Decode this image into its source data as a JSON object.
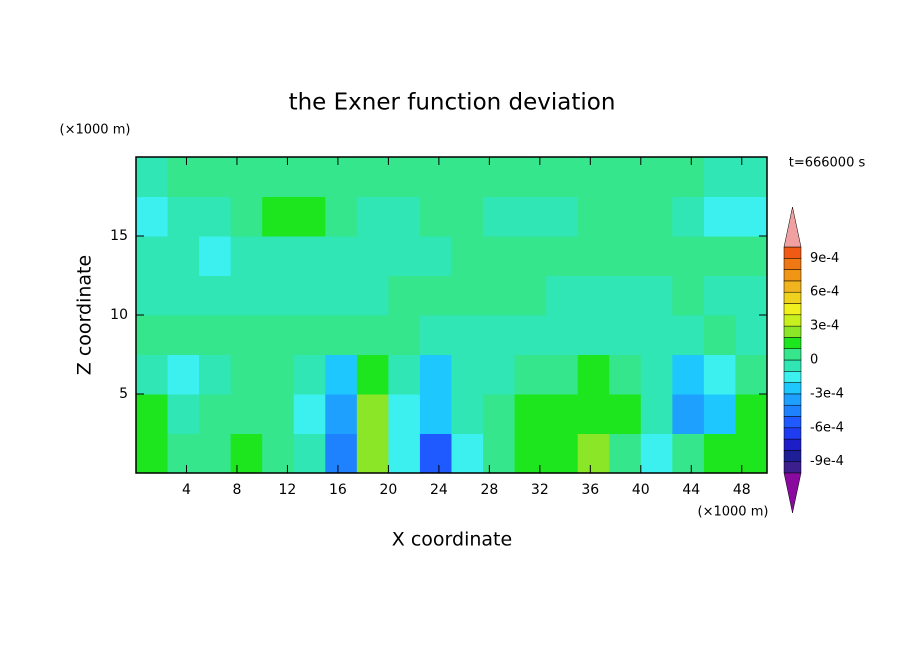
{
  "chart_data": {
    "type": "contour",
    "title": "the Exner function deviation",
    "xlabel": "X coordinate",
    "ylabel": "Z coordinate",
    "x_unit": "(×1000 m)",
    "y_unit": "(×1000 m)",
    "annotation": "t=666000 s",
    "xlim": [
      0,
      50
    ],
    "ylim": [
      0,
      20
    ],
    "xticks": [
      4,
      8,
      12,
      16,
      20,
      24,
      28,
      32,
      36,
      40,
      44,
      48
    ],
    "yticks": [
      5,
      10,
      15
    ],
    "x": [
      1.25,
      3.75,
      6.25,
      8.75,
      11.25,
      13.75,
      16.25,
      18.75,
      21.25,
      23.75,
      26.25,
      28.75,
      31.25,
      33.75,
      36.25,
      38.75,
      41.25,
      43.75,
      46.25,
      48.75
    ],
    "y": [
      1.25,
      3.75,
      6.25,
      8.75,
      11.25,
      13.75,
      16.25,
      18.75
    ],
    "z": [
      [
        0.00015,
        5e-05,
        5e-05,
        0.00015,
        5e-05,
        -5e-05,
        -0.00045,
        0.00025,
        -0.00015,
        -0.00055,
        -0.00015,
        5e-05,
        0.00015,
        0.00015,
        0.00025,
        5e-05,
        -0.00015,
        5e-05,
        0.00015,
        0.00015
      ],
      [
        0.00015,
        -5e-05,
        5e-05,
        5e-05,
        5e-05,
        -0.00015,
        -0.00035,
        0.00025,
        -0.00015,
        -0.00025,
        -5e-05,
        5e-05,
        0.00015,
        0.00015,
        0.00015,
        0.00015,
        -5e-05,
        -0.00035,
        -0.00025,
        0.00015
      ],
      [
        -5e-05,
        -0.00015,
        -5e-05,
        5e-05,
        5e-05,
        -5e-05,
        -0.00025,
        0.00015,
        -5e-05,
        -0.00025,
        -5e-05,
        -5e-05,
        5e-05,
        5e-05,
        0.00015,
        5e-05,
        -5e-05,
        -0.00025,
        -0.00015,
        5e-05
      ],
      [
        5e-05,
        5e-05,
        5e-05,
        5e-05,
        5e-05,
        5e-05,
        5e-05,
        5e-05,
        5e-05,
        -5e-05,
        -5e-05,
        -5e-05,
        -5e-05,
        -5e-05,
        -5e-05,
        -5e-05,
        -5e-05,
        -5e-05,
        5e-05,
        -5e-05
      ],
      [
        -5e-05,
        -5e-05,
        -5e-05,
        -5e-05,
        -5e-05,
        -5e-05,
        -5e-05,
        -5e-05,
        5e-05,
        5e-05,
        5e-05,
        5e-05,
        5e-05,
        -5e-05,
        -5e-05,
        -5e-05,
        -5e-05,
        5e-05,
        -5e-05,
        -5e-05
      ],
      [
        -5e-05,
        -5e-05,
        -0.00015,
        -5e-05,
        -5e-05,
        -5e-05,
        -5e-05,
        -5e-05,
        -5e-05,
        -5e-05,
        5e-05,
        5e-05,
        5e-05,
        5e-05,
        5e-05,
        5e-05,
        5e-05,
        5e-05,
        5e-05,
        5e-05
      ],
      [
        -0.00015,
        -5e-05,
        -5e-05,
        5e-05,
        0.00015,
        0.00015,
        5e-05,
        -5e-05,
        -5e-05,
        5e-05,
        5e-05,
        -5e-05,
        -5e-05,
        -5e-05,
        5e-05,
        5e-05,
        5e-05,
        -5e-05,
        -0.00015,
        -0.00015
      ],
      [
        -5e-05,
        5e-05,
        5e-05,
        5e-05,
        5e-05,
        5e-05,
        5e-05,
        5e-05,
        5e-05,
        5e-05,
        5e-05,
        5e-05,
        5e-05,
        5e-05,
        5e-05,
        5e-05,
        5e-05,
        5e-05,
        -5e-05,
        -5e-05
      ]
    ],
    "levels": [
      -0.001,
      -0.0009,
      -0.0008,
      -0.0007,
      -0.0006,
      -0.0005,
      -0.0004,
      -0.0003,
      -0.0002,
      -0.0001,
      0,
      0.0001,
      0.0002,
      0.0003,
      0.0004,
      0.0005,
      0.0006,
      0.0007,
      0.0008,
      0.0009,
      0.001
    ],
    "colors": [
      "#3c1e8c",
      "#1e1e96",
      "#1e1ec8",
      "#1e3cf0",
      "#1e5aff",
      "#1e82ff",
      "#1ea0ff",
      "#1ec8ff",
      "#3cf0f0",
      "#30e6b4",
      "#36e68c",
      "#1ee61e",
      "#8ce628",
      "#c8f01e",
      "#f0f01e",
      "#f0d21e",
      "#f0b41e",
      "#f09614",
      "#f07814",
      "#f05a14",
      "#f01e1e"
    ],
    "under_color": "#8a0aa0",
    "over_color": "#f0a0a0",
    "cbar_ticks": [
      {
        "value": 0.0009,
        "label": "9e-4"
      },
      {
        "value": 0.0006,
        "label": "6e-4"
      },
      {
        "value": 0.0003,
        "label": "3e-4"
      },
      0,
      {
        "value": -0.0003,
        "label": "-3e-4"
      },
      {
        "value": -0.0006,
        "label": "-6e-4"
      },
      {
        "value": -0.0009,
        "label": "-9e-4"
      }
    ]
  }
}
